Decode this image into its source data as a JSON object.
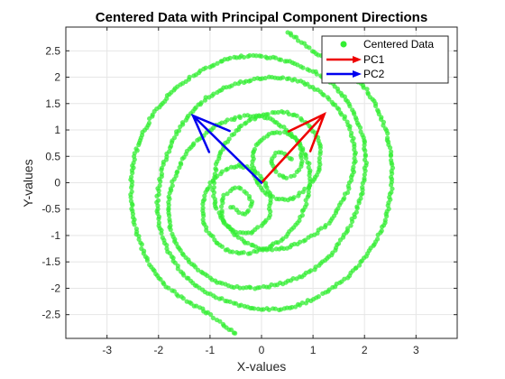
{
  "chart_data": {
    "type": "scatter",
    "title": "Centered Data with Principal Component Directions",
    "xlabel": "X-values",
    "ylabel": "Y-values",
    "xlim": [
      -3.8,
      3.8
    ],
    "ylim": [
      -2.95,
      2.95
    ],
    "x_ticks": [
      -3,
      -2,
      -1,
      0,
      1,
      2,
      3
    ],
    "y_ticks": [
      -2.5,
      -2,
      -1.5,
      -1,
      -0.5,
      0,
      0.5,
      1,
      1.5,
      2,
      2.5
    ],
    "x_tick_labels": [
      "-3",
      "-2",
      "-1",
      "0",
      "1",
      "2",
      "3"
    ],
    "y_tick_labels": [
      "-2.5",
      "-2",
      "-1.5",
      "-1",
      "-0.5",
      "0",
      "0.5",
      "1",
      "1.5",
      "2",
      "2.5"
    ],
    "grid": true,
    "legend_position": "top-right",
    "colors": {
      "data": "#33ee33",
      "pc1": "#ee0000",
      "pc2": "#0000ee",
      "axes": "#262626",
      "grid": "#e6e6e6"
    },
    "series": [
      {
        "name": "Centered Data",
        "type": "spiral-scatter",
        "arms": [
          {
            "points": [
              [
                -0.58,
                -0.45
              ],
              [
                -0.33,
                -0.59
              ],
              [
                -0.2,
                -0.35
              ],
              [
                -0.45,
                -0.1
              ],
              [
                -0.75,
                -0.3
              ],
              [
                -0.7,
                -0.8
              ],
              [
                -0.25,
                -0.95
              ],
              [
                0.15,
                -0.6
              ],
              [
                0.05,
                0.05
              ],
              [
                -0.5,
                0.32
              ],
              [
                -1.05,
                -0.1
              ],
              [
                -1.1,
                -0.8
              ],
              [
                -0.6,
                -1.3
              ],
              [
                0.2,
                -1.2
              ],
              [
                0.8,
                -0.55
              ],
              [
                0.9,
                0.4
              ],
              [
                0.35,
                1.1
              ],
              [
                -0.4,
                1.25
              ],
              [
                -1.3,
                0.75
              ],
              [
                -1.8,
                -0.3
              ],
              [
                -1.6,
                -1.25
              ],
              [
                -0.8,
                -1.9
              ],
              [
                0.2,
                -1.95
              ],
              [
                1.2,
                -1.5
              ],
              [
                1.85,
                -0.5
              ],
              [
                2.0,
                0.7
              ],
              [
                1.5,
                1.75
              ],
              [
                0.5,
                2.3
              ],
              [
                -0.6,
                2.35
              ],
              [
                -1.7,
                1.75
              ],
              [
                -2.4,
                0.7
              ],
              [
                -2.5,
                -0.6
              ],
              [
                -2.0,
                -1.8
              ],
              [
                -1.0,
                -2.5
              ],
              [
                -0.5,
                -2.87
              ]
            ]
          },
          {
            "points": [
              [
                0.58,
                0.45
              ],
              [
                0.33,
                0.59
              ],
              [
                0.2,
                0.35
              ],
              [
                0.45,
                0.1
              ],
              [
                0.75,
                0.3
              ],
              [
                0.7,
                0.8
              ],
              [
                0.25,
                0.95
              ],
              [
                -0.15,
                0.6
              ],
              [
                -0.05,
                -0.05
              ],
              [
                0.5,
                -0.32
              ],
              [
                1.05,
                0.1
              ],
              [
                1.1,
                0.8
              ],
              [
                0.6,
                1.3
              ],
              [
                -0.2,
                1.2
              ],
              [
                -0.8,
                0.55
              ],
              [
                -0.9,
                -0.4
              ],
              [
                -0.35,
                -1.1
              ],
              [
                0.4,
                -1.25
              ],
              [
                1.3,
                -0.75
              ],
              [
                1.8,
                0.3
              ],
              [
                1.6,
                1.25
              ],
              [
                0.8,
                1.9
              ],
              [
                -0.2,
                1.95
              ],
              [
                -1.2,
                1.5
              ],
              [
                -1.85,
                0.5
              ],
              [
                -2.0,
                -0.7
              ],
              [
                -1.5,
                -1.75
              ],
              [
                -0.5,
                -2.3
              ],
              [
                0.6,
                -2.35
              ],
              [
                1.7,
                -1.75
              ],
              [
                2.4,
                -0.7
              ],
              [
                2.5,
                0.6
              ],
              [
                2.0,
                1.8
              ],
              [
                1.0,
                2.5
              ],
              [
                0.5,
                2.87
              ]
            ]
          }
        ]
      },
      {
        "name": "PC1",
        "type": "arrow",
        "from": [
          0,
          0
        ],
        "to": [
          1.22,
          1.3
        ]
      },
      {
        "name": "PC2",
        "type": "arrow",
        "from": [
          0,
          0
        ],
        "to": [
          -1.33,
          1.27
        ]
      }
    ],
    "legend": [
      {
        "label": "Centered Data",
        "kind": "marker"
      },
      {
        "label": "PC1",
        "kind": "arrow"
      },
      {
        "label": "PC2",
        "kind": "arrow"
      }
    ]
  }
}
